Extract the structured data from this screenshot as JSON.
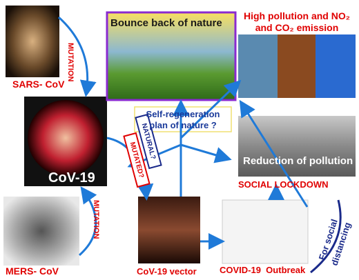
{
  "nodes": [
    {
      "label": "SARS- CoV"
    },
    {
      "label": "MUTATION"
    },
    {
      "label": "CoV-19"
    },
    {
      "label": "MERS- CoV"
    },
    {
      "label": "MUTATION"
    },
    {
      "label": "Bounce back of nature"
    },
    {
      "label": "High pollution and NO₂"
    },
    {
      "label": "and CO₂ emission"
    },
    {
      "label": "Self-regeneration"
    },
    {
      "label": "plan of nature ?"
    },
    {
      "label": "NATURAL?"
    },
    {
      "label": "MUTATED?"
    },
    {
      "label": "Reduction of pollution"
    },
    {
      "label": "SOCIAL LOCKDOWN"
    },
    {
      "label": "CoV-19 vector"
    },
    {
      "label": "COVID-19  Outbreak"
    },
    {
      "label": "For social"
    },
    {
      "label": "distancing"
    }
  ]
}
